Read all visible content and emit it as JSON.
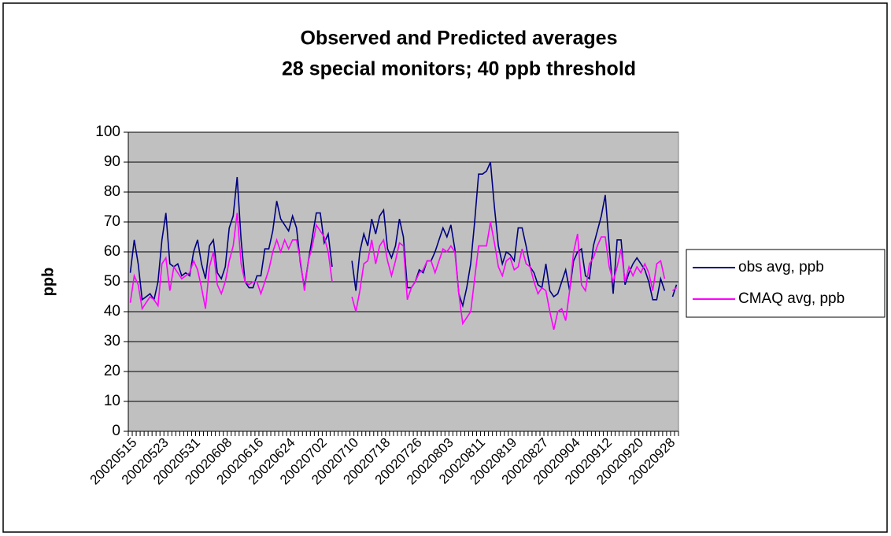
{
  "chart_data": {
    "type": "line",
    "title": "Observed and Predicted averages",
    "subtitle": "28 special monitors; 40 ppb threshold",
    "y_label": "ppb",
    "categories": [
      "20020515",
      null,
      null,
      null,
      null,
      null,
      null,
      null,
      "20020523",
      null,
      null,
      null,
      null,
      null,
      null,
      null,
      "20020531",
      null,
      null,
      null,
      null,
      null,
      null,
      null,
      "20020608",
      null,
      null,
      null,
      null,
      null,
      null,
      null,
      "20020616",
      null,
      null,
      null,
      null,
      null,
      null,
      null,
      "20020624",
      null,
      null,
      null,
      null,
      null,
      null,
      null,
      "20020702",
      null,
      null,
      null,
      null,
      null,
      null,
      null,
      "20020710",
      null,
      null,
      null,
      null,
      null,
      null,
      null,
      "20020718",
      null,
      null,
      null,
      null,
      null,
      null,
      null,
      "20020726",
      null,
      null,
      null,
      null,
      null,
      null,
      null,
      "20020803",
      null,
      null,
      null,
      null,
      null,
      null,
      null,
      "20020811",
      null,
      null,
      null,
      null,
      null,
      null,
      null,
      "20020819",
      null,
      null,
      null,
      null,
      null,
      null,
      null,
      "20020827",
      null,
      null,
      null,
      null,
      null,
      null,
      null,
      "20020904",
      null,
      null,
      null,
      null,
      null,
      null,
      null,
      "20020912",
      null,
      null,
      null,
      null,
      null,
      null,
      null,
      "20020920",
      null,
      null,
      null,
      null,
      null,
      null,
      null,
      "20020928",
      null,
      null
    ],
    "series": [
      {
        "name": "obs avg, ppb",
        "color": "#000080",
        "values": [
          53,
          64,
          56,
          44,
          45,
          46,
          44,
          50,
          64,
          73,
          56,
          55,
          56,
          52,
          53,
          52,
          60,
          64,
          56,
          51,
          62,
          64,
          53,
          51,
          55,
          68,
          72,
          85,
          64,
          50,
          48,
          48,
          52,
          52,
          61,
          61,
          67,
          77,
          71,
          69,
          67,
          72,
          68,
          56,
          48,
          57,
          65,
          73,
          73,
          63,
          66,
          55,
          null,
          null,
          null,
          null,
          57,
          47,
          60,
          66,
          62,
          71,
          66,
          72,
          74,
          61,
          58,
          62,
          71,
          65,
          48,
          48,
          50,
          54,
          53,
          57,
          57,
          60,
          64,
          68,
          65,
          69,
          61,
          46,
          42,
          48,
          56,
          70,
          86,
          86,
          87,
          90,
          75,
          62,
          56,
          60,
          59,
          57,
          68,
          68,
          62,
          55,
          53,
          49,
          48,
          56,
          47,
          45,
          46,
          50,
          54,
          47,
          57,
          60,
          61,
          52,
          51,
          62,
          67,
          72,
          79,
          62,
          46,
          64,
          64,
          49,
          53,
          56,
          58,
          56,
          54,
          50,
          44,
          44,
          51,
          47,
          null,
          45,
          49
        ]
      },
      {
        "name": "CMAQ avg, ppb",
        "color": "#ff00ff",
        "values": [
          43,
          52,
          49,
          41,
          43,
          45,
          44,
          42,
          56,
          58,
          47,
          55,
          53,
          51,
          52,
          53,
          57,
          54,
          48,
          41,
          55,
          60,
          49,
          46,
          50,
          57,
          62,
          73,
          56,
          50,
          49,
          50,
          50,
          46,
          50,
          54,
          60,
          64,
          60,
          64,
          61,
          64,
          64,
          57,
          47,
          57,
          62,
          69,
          67,
          65,
          60,
          50,
          null,
          null,
          null,
          null,
          45,
          40,
          47,
          56,
          57,
          64,
          56,
          62,
          64,
          57,
          52,
          57,
          63,
          62,
          44,
          48,
          50,
          53,
          54,
          57,
          57,
          53,
          57,
          61,
          60,
          62,
          60,
          46,
          36,
          38,
          40,
          51,
          62,
          62,
          62,
          70,
          63,
          55,
          52,
          57,
          58,
          54,
          55,
          61,
          56,
          55,
          50,
          46,
          48,
          47,
          40,
          34,
          40,
          41,
          37,
          47,
          60,
          66,
          49,
          47,
          56,
          58,
          62,
          65,
          65,
          55,
          50,
          55,
          61,
          50,
          55,
          52,
          55,
          53,
          56,
          53,
          47,
          56,
          57,
          51,
          null,
          47,
          48
        ]
      }
    ],
    "ylim": [
      0,
      100
    ],
    "yticks": [
      0,
      10,
      20,
      30,
      40,
      50,
      60,
      70,
      80,
      90,
      100
    ],
    "grid": true,
    "legend": "right",
    "plot_background": "#c0c0c0"
  }
}
